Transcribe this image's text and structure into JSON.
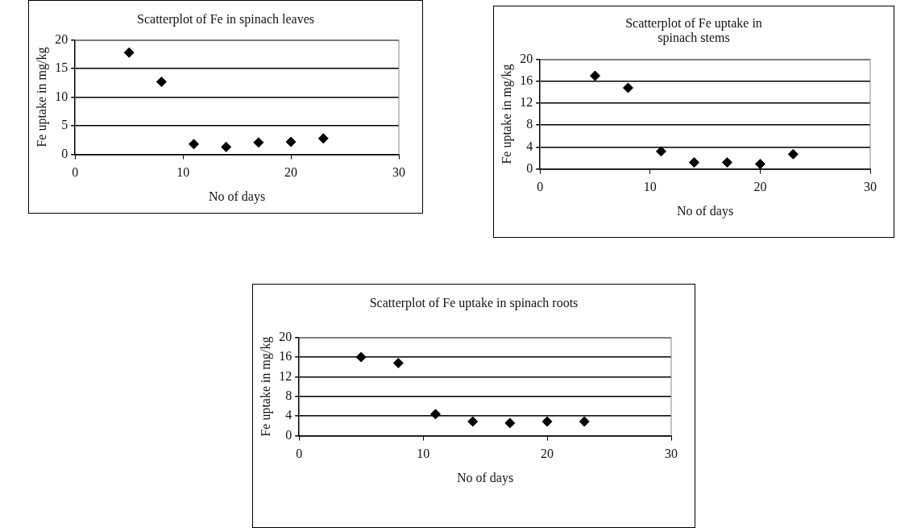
{
  "chart_data": [
    {
      "type": "scatter",
      "title": "Scatterplot of Fe in spinach leaves",
      "xlabel": "No of days",
      "ylabel": "Fe uptake in mg/kg",
      "x": [
        5,
        8,
        11,
        14,
        17,
        20,
        23
      ],
      "values": [
        17.8,
        12.7,
        1.8,
        1.3,
        2.1,
        2.2,
        2.8
      ],
      "color": "#000000",
      "marker": "diamond",
      "grid": "y",
      "xlim": [
        0,
        30
      ],
      "xticks": [
        0,
        10,
        20,
        30
      ],
      "ylim": [
        0,
        20
      ],
      "yticks": [
        0,
        5,
        10,
        15,
        20
      ]
    },
    {
      "type": "scatter",
      "title": "Scatterplot of Fe uptake in spinach stems",
      "xlabel": "No of days",
      "ylabel": "Fe uptake in mg/kg",
      "x": [
        5,
        8,
        11,
        14,
        17,
        20,
        23
      ],
      "values": [
        17,
        14.8,
        3.2,
        1.2,
        1.2,
        0.9,
        2.7
      ],
      "color": "#000000",
      "marker": "diamond",
      "grid": "y",
      "xlim": [
        0,
        30
      ],
      "xticks": [
        0,
        10,
        20,
        30
      ],
      "ylim": [
        0,
        20
      ],
      "yticks": [
        0,
        4,
        8,
        12,
        16,
        20
      ]
    },
    {
      "type": "scatter",
      "title": "Scatterplot of Fe uptake in spinach roots",
      "xlabel": "No of days",
      "ylabel": "Fe uptake in mg/kg",
      "x": [
        5,
        8,
        11,
        14,
        17,
        20,
        23
      ],
      "values": [
        16,
        14.8,
        4.4,
        2.9,
        2.6,
        2.9,
        2.9
      ],
      "color": "#000000",
      "marker": "diamond",
      "grid": "y",
      "xlim": [
        0,
        30
      ],
      "xticks": [
        0,
        10,
        20,
        30
      ],
      "ylim": [
        0,
        20
      ],
      "yticks": [
        0,
        4,
        8,
        12,
        16,
        20
      ]
    }
  ]
}
